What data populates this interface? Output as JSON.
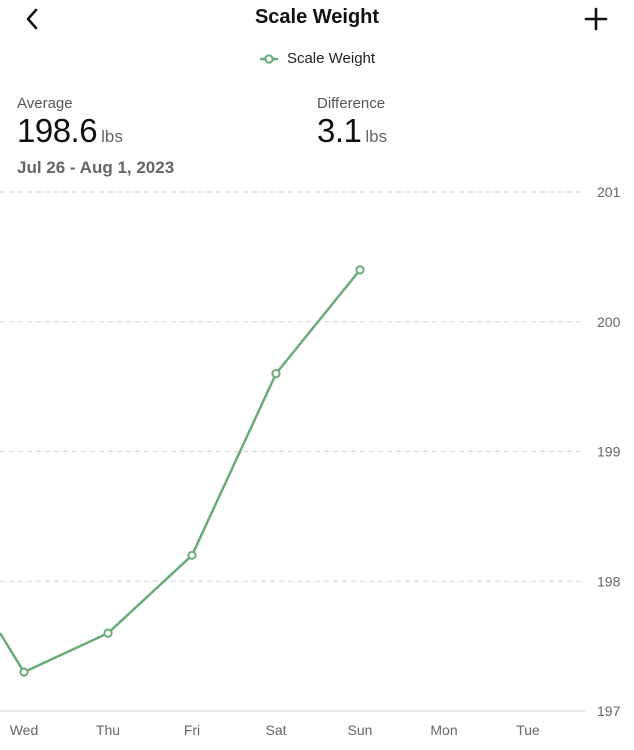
{
  "header": {
    "title": "Scale Weight",
    "back_icon": "chevron-left-icon",
    "add_icon": "plus-icon"
  },
  "legend": {
    "label": "Scale Weight",
    "color": "#6aab7a"
  },
  "stats": {
    "average_label": "Average",
    "average_value": "198.6",
    "average_unit": "lbs",
    "date_range": "Jul 26 - Aug 1, 2023",
    "difference_label": "Difference",
    "difference_value": "3.1",
    "difference_unit": "lbs"
  },
  "chart_data": {
    "type": "line",
    "categories": [
      "Wed",
      "Thu",
      "Fri",
      "Sat",
      "Sun",
      "Mon",
      "Tue"
    ],
    "series": [
      {
        "name": "Scale Weight",
        "color": "#6aab7a",
        "values": [
          197.3,
          197.6,
          198.2,
          199.6,
          200.4,
          null,
          null
        ]
      }
    ],
    "y_ticks": [
      "201",
      "200",
      "199",
      "198",
      "197"
    ],
    "ylim": [
      197,
      201
    ],
    "grid": true
  }
}
